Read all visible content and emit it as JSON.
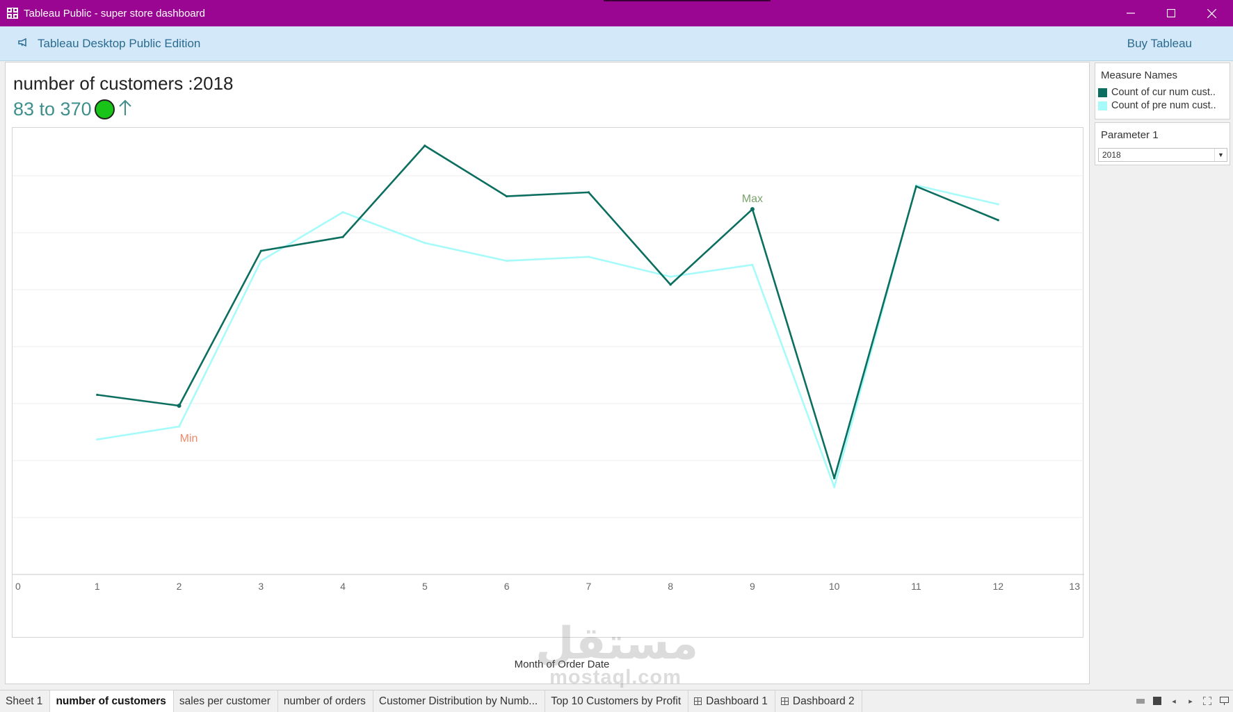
{
  "window": {
    "title": "Tableau Public - super store dashboard",
    "minimize_icon": "minimize-icon",
    "maximize_icon": "maximize-icon",
    "close_icon": "close-icon"
  },
  "banner": {
    "edition": "Tableau Desktop Public Edition",
    "buy": "Buy Tableau"
  },
  "sheet": {
    "title": "number of customers :2018",
    "kpi_range": "83 to 370",
    "kpi_status_color": "#19c419",
    "kpi_arrow": "up-arrow-icon"
  },
  "legend": {
    "title": "Measure Names",
    "items": [
      {
        "label": "Count of cur num cust..",
        "color": "#0b6e5f"
      },
      {
        "label": "Count of pre num cust..",
        "color": "#a6fbfa"
      }
    ]
  },
  "parameter": {
    "title": "Parameter 1",
    "value": "2018"
  },
  "chart_data": {
    "type": "line",
    "xlabel": "Month of Order Date",
    "ylabel": "",
    "x_ticks": [
      "0",
      "1",
      "2",
      "3",
      "4",
      "5",
      "6",
      "7",
      "8",
      "9",
      "10",
      "11",
      "12",
      "13"
    ],
    "xlim": [
      0,
      13
    ],
    "grid": true,
    "series": [
      {
        "name": "Count of cur num cust..",
        "color": "#0b6e5f",
        "x": [
          1,
          2,
          3,
          4,
          5,
          6,
          7,
          8,
          9,
          10,
          11,
          12
        ],
        "values": [
          181,
          170,
          326,
          340,
          432,
          381,
          385,
          292,
          368,
          97,
          391,
          357
        ]
      },
      {
        "name": "Count of pre num cust..",
        "color": "#a6fbfa",
        "x": [
          1,
          2,
          3,
          4,
          5,
          6,
          7,
          8,
          9,
          10,
          11,
          12
        ],
        "values": [
          136,
          149,
          316,
          365,
          334,
          316,
          320,
          300,
          312,
          88,
          392,
          373
        ]
      }
    ],
    "annotations": [
      {
        "text": "Max",
        "x": 9,
        "color": "#7aa36a"
      },
      {
        "text": "Min",
        "x": 2,
        "color": "#ee8a6a"
      }
    ]
  },
  "tabs": [
    {
      "label": "Sheet 1",
      "type": "sheet"
    },
    {
      "label": "number of customers",
      "type": "sheet",
      "active": true
    },
    {
      "label": "sales per customer",
      "type": "sheet"
    },
    {
      "label": "number of orders",
      "type": "sheet"
    },
    {
      "label": "Customer Distribution by Numb...",
      "type": "sheet"
    },
    {
      "label": "Top 10 Customers by Profit",
      "type": "sheet"
    },
    {
      "label": "Dashboard 1",
      "type": "dashboard"
    },
    {
      "label": "Dashboard 2",
      "type": "dashboard"
    }
  ],
  "watermark": {
    "arabic": "مستقل",
    "latin": "mostaql.com"
  }
}
